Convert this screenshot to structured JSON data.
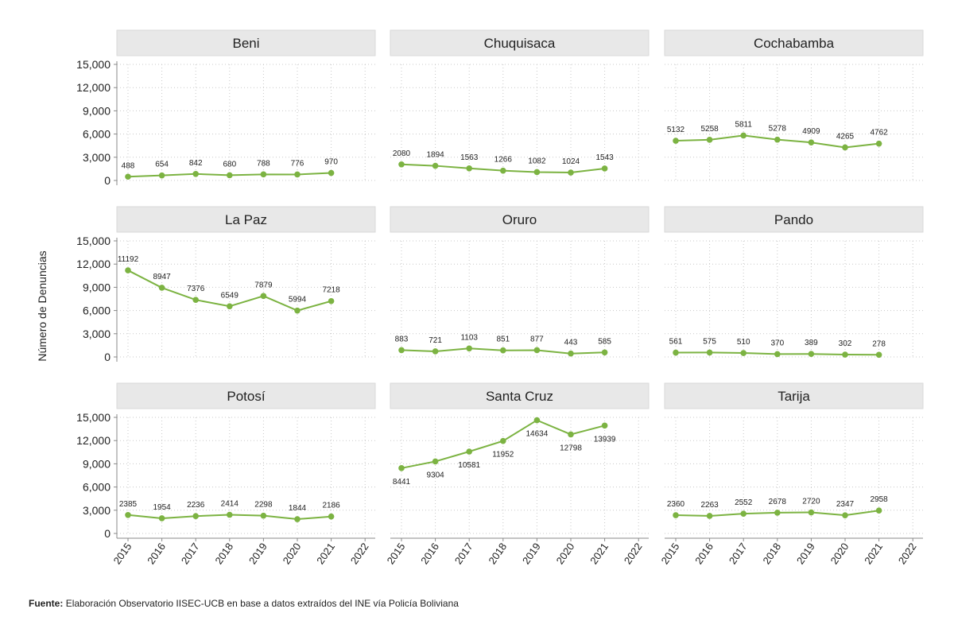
{
  "chart_data": {
    "type": "line",
    "ylabel": "Número de Denuncias",
    "ylim": [
      0,
      15000
    ],
    "yticks": [
      "0",
      "3,000",
      "6,000",
      "9,000",
      "12,000",
      "15,000"
    ],
    "x_ticks": [
      "2015",
      "2016",
      "2017",
      "2018",
      "2019",
      "2020",
      "2021",
      "2022"
    ],
    "grid": true,
    "line_color": "#7cb342",
    "panels": [
      {
        "title": "Beni",
        "x": [
          2015,
          2016,
          2017,
          2018,
          2019,
          2020,
          2021
        ],
        "values": [
          488,
          654,
          842,
          680,
          788,
          776,
          970
        ],
        "label_pos": [
          "above",
          "above",
          "above",
          "above",
          "above",
          "above",
          "above"
        ]
      },
      {
        "title": "Chuquisaca",
        "x": [
          2015,
          2016,
          2017,
          2018,
          2019,
          2020,
          2021
        ],
        "values": [
          2080,
          1894,
          1563,
          1266,
          1082,
          1024,
          1543
        ],
        "label_pos": [
          "above",
          "above",
          "above",
          "above",
          "above",
          "above",
          "above"
        ]
      },
      {
        "title": "Cochabamba",
        "x": [
          2015,
          2016,
          2017,
          2018,
          2019,
          2020,
          2021
        ],
        "values": [
          5132,
          5258,
          5811,
          5278,
          4909,
          4265,
          4762
        ],
        "label_pos": [
          "above",
          "above",
          "above",
          "above",
          "above",
          "above",
          "above"
        ]
      },
      {
        "title": "La Paz",
        "x": [
          2015,
          2016,
          2017,
          2018,
          2019,
          2020,
          2021
        ],
        "values": [
          11192,
          8947,
          7376,
          6549,
          7879,
          5994,
          7218
        ],
        "label_pos": [
          "above",
          "above",
          "above",
          "above",
          "above",
          "above",
          "above"
        ]
      },
      {
        "title": "Oruro",
        "x": [
          2015,
          2016,
          2017,
          2018,
          2019,
          2020,
          2021
        ],
        "values": [
          883,
          721,
          1103,
          851,
          877,
          443,
          585
        ],
        "label_pos": [
          "above",
          "above",
          "above",
          "above",
          "above",
          "above",
          "above"
        ]
      },
      {
        "title": "Pando",
        "x": [
          2015,
          2016,
          2017,
          2018,
          2019,
          2020,
          2021
        ],
        "values": [
          561,
          575,
          510,
          370,
          389,
          302,
          278
        ],
        "label_pos": [
          "above",
          "above",
          "above",
          "above",
          "above",
          "above",
          "above"
        ]
      },
      {
        "title": "Potosí",
        "x": [
          2015,
          2016,
          2017,
          2018,
          2019,
          2020,
          2021
        ],
        "values": [
          2385,
          1954,
          2236,
          2414,
          2298,
          1844,
          2186
        ],
        "label_pos": [
          "above",
          "above",
          "above",
          "above",
          "above",
          "above",
          "above"
        ]
      },
      {
        "title": "Santa Cruz",
        "x": [
          2015,
          2016,
          2017,
          2018,
          2019,
          2020,
          2021
        ],
        "values": [
          8441,
          9304,
          10581,
          11952,
          14634,
          12798,
          13939
        ],
        "label_pos": [
          "below",
          "below",
          "below",
          "below",
          "below",
          "below",
          "below"
        ]
      },
      {
        "title": "Tarija",
        "x": [
          2015,
          2016,
          2017,
          2018,
          2019,
          2020,
          2021
        ],
        "values": [
          2360,
          2263,
          2552,
          2678,
          2720,
          2347,
          2958
        ],
        "label_pos": [
          "above",
          "above",
          "above",
          "above",
          "above",
          "above",
          "above"
        ]
      }
    ]
  },
  "source": {
    "label": "Fuente:",
    "text": "Elaboración Observatorio IISEC-UCB en base a datos  extraídos del INE vía Policía Boliviana"
  }
}
